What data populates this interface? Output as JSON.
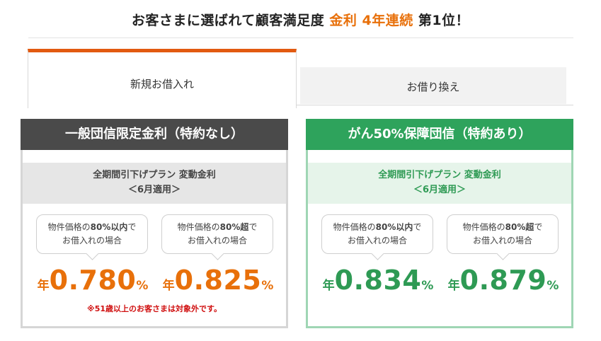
{
  "headline": {
    "prefix": "お客さまに選ばれて顧客満足度 ",
    "accent": "金利 4年連続",
    "suffix": " 第1位！"
  },
  "tabs": [
    {
      "label": "新規お借入れ",
      "active": true
    },
    {
      "label": "お借り換え",
      "active": false
    }
  ],
  "panels": [
    {
      "title": "一般団信限定金利（特約なし）",
      "plan_line1": "全期間引下げプラン 変動金利",
      "plan_line2": "＜6月適用＞",
      "options": [
        {
          "cond_pre": "物件価格の",
          "cond_bold": "80%以内",
          "cond_post": "で",
          "cond_line2": "お借入れの場合",
          "prefix": "年",
          "rate": "0.780",
          "suffix": "%"
        },
        {
          "cond_pre": "物件価格の",
          "cond_bold": "80%超",
          "cond_post": "で",
          "cond_line2": "お借入れの場合",
          "prefix": "年",
          "rate": "0.825",
          "suffix": "%"
        }
      ],
      "note": "※51歳以上のお客さまは対象外です。"
    },
    {
      "title": "がん50%保障団信（特約あり）",
      "plan_line1": "全期間引下げプラン 変動金利",
      "plan_line2": "＜6月適用＞",
      "options": [
        {
          "cond_pre": "物件価格の",
          "cond_bold": "80%以内",
          "cond_post": "で",
          "cond_line2": "お借入れの場合",
          "prefix": "年",
          "rate": "0.834",
          "suffix": "%"
        },
        {
          "cond_pre": "物件価格の",
          "cond_bold": "80%超",
          "cond_post": "で",
          "cond_line2": "お借入れの場合",
          "prefix": "年",
          "rate": "0.879",
          "suffix": "%"
        }
      ]
    }
  ],
  "colors": {
    "orange": "#e8700a",
    "tab_accent": "#e25a10",
    "green": "#2e9a54",
    "dark": "#4a4a4a",
    "note_red": "#d01010"
  }
}
